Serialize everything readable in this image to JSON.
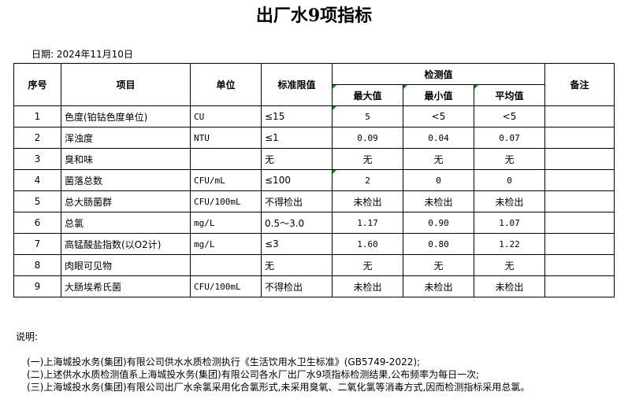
{
  "title": "出厂水9项指标",
  "date": "日期: 2024年11月10日",
  "table": {
    "headers": [
      "序号",
      "项目",
      "单位",
      "标准限值",
      "检测值",
      "备注"
    ],
    "subheaders": [
      "最大值",
      "最小值",
      "平均值"
    ],
    "rows": [
      [
        "1",
        "色度(铂钴色度单位)",
        "CU",
        "≤15",
        "5",
        "<5",
        "<5"
      ],
      [
        "2",
        "浑浊度",
        "NTU",
        "≤1",
        "0.09",
        "0.04",
        "0.07"
      ],
      [
        "3",
        "臭和味",
        null,
        "无",
        "无",
        "无",
        "无"
      ],
      [
        "4",
        "菌落总数",
        "CFU/mL",
        "≤100",
        "2",
        "0",
        "0"
      ],
      [
        "5",
        "总大肠菌群",
        "CFU/100mL",
        "不得检出",
        "未检出",
        "未检出",
        "未检出"
      ],
      [
        "6",
        "总氯",
        "mg/L",
        "0.5～3.0",
        "1.17",
        "0.90",
        "1.07"
      ],
      [
        "7",
        "高锰酸盐指数(以O2计)",
        "mg/L",
        "≤3",
        "1.60",
        "0.80",
        "1.22"
      ],
      [
        "8",
        "肉眼可见物",
        null,
        "无",
        "无",
        "无",
        "无"
      ],
      [
        "9",
        "大肠埃希氏菌",
        "CFU/100mL",
        "不得检出",
        "未检出",
        "未检出",
        "未检出"
      ]
    ]
  },
  "notes": {
    "label": "说明:",
    "items": [
      "(一)上海城投水务(集团)有限公司供水水质检测执行《生活饮用水卫生标准》(GB5749-2022);",
      "(二)上述供水水质检测值系上海城投水务(集团)有限公司各水厂出厂水9项指标检测结果,公布频率为每日一次;",
      "(三)上海城投水务(集团)有限公司出厂水余氯采用化合氯形式,未采用臭氧、二氧化氯等消毒方式,因而检测指标采用总氯。"
    ]
  }
}
